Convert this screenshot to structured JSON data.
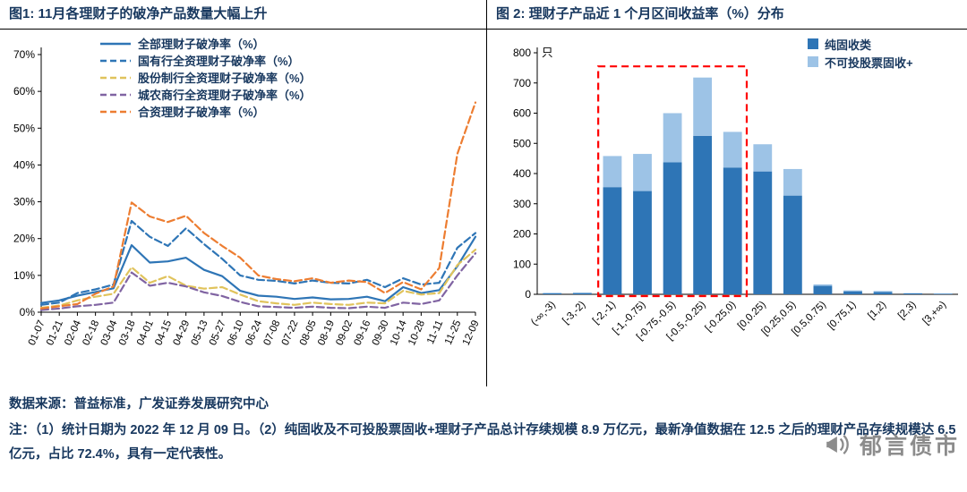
{
  "footer": {
    "source": "数据来源：普益标准，广发证券发展研究中心",
    "note": "注：（1）统计日期为 2022 年 12 月 09 日。（2）纯固收及不可投股票固收+理财子产品总计存续规模 8.9 万亿元，最新净值数据在 12.5 之后的理财产品存续规模达 6.5 亿元，占比 72.4%，具有一定代表性。"
  },
  "logo": {
    "text": "郁言债市"
  },
  "colors": {
    "title_text": "#17375E",
    "steel_blue": "#2E75B6",
    "light_blue": "#9DC3E6",
    "yellow": "#E0C35C",
    "purple": "#8064A2",
    "orange": "#ED7D31",
    "highlight_red": "#FF0000"
  },
  "chart_data": [
    {
      "type": "line",
      "title": "图1: 11月各理财子的破净产品数量大幅上升",
      "x": [
        "01-07",
        "01-21",
        "02-04",
        "02-18",
        "03-04",
        "03-18",
        "04-01",
        "04-15",
        "04-29",
        "05-13",
        "05-27",
        "06-10",
        "06-24",
        "07-08",
        "07-22",
        "08-05",
        "08-19",
        "09-02",
        "09-16",
        "09-30",
        "10-14",
        "10-28",
        "11-11",
        "11-25",
        "12-09"
      ],
      "ylim": [
        0,
        70
      ],
      "yticks": [
        0,
        10,
        20,
        30,
        40,
        50,
        60,
        70
      ],
      "ytick_format": "percent",
      "grid": false,
      "legend_position": "top-left-inside",
      "series": [
        {
          "name": "全部理财子破净率（%）",
          "color": "#2E75B6",
          "dash": false,
          "values": [
            2.5,
            3.2,
            4.5,
            5.5,
            6.5,
            18.2,
            13.5,
            13.8,
            14.8,
            11.5,
            9.8,
            5.8,
            4.5,
            4.2,
            3.6,
            4.0,
            3.5,
            3.6,
            4.2,
            3.0,
            6.8,
            5.2,
            6.0,
            12.5,
            20.5
          ]
        },
        {
          "name": "国有行全资理财子破净率（%）",
          "color": "#2E75B6",
          "dash": true,
          "values": [
            2.0,
            2.6,
            5.2,
            6.2,
            7.5,
            24.8,
            20.5,
            18.0,
            22.8,
            18.5,
            14.5,
            10.0,
            8.8,
            8.5,
            7.8,
            8.6,
            8.0,
            7.8,
            8.8,
            6.8,
            9.2,
            7.5,
            8.0,
            17.5,
            21.5
          ]
        },
        {
          "name": "股份制行全资理财子破净率（%）",
          "color": "#E0C35C",
          "dash": true,
          "values": [
            1.2,
            1.8,
            3.2,
            4.2,
            5.0,
            12.2,
            8.0,
            9.8,
            7.2,
            6.4,
            6.8,
            4.8,
            3.0,
            2.4,
            2.0,
            2.6,
            2.2,
            2.0,
            2.6,
            2.4,
            5.8,
            4.8,
            5.2,
            12.8,
            17.0
          ]
        },
        {
          "name": "城农商行全资理财子破净率（%）",
          "color": "#8064A2",
          "dash": true,
          "values": [
            0.6,
            1.0,
            1.6,
            2.0,
            2.6,
            10.8,
            7.2,
            8.0,
            7.0,
            5.4,
            4.4,
            2.8,
            1.6,
            1.4,
            1.2,
            1.5,
            1.2,
            1.1,
            1.5,
            1.2,
            2.6,
            2.2,
            3.2,
            10.0,
            16.0
          ]
        },
        {
          "name": "合资理财子破净率（%）",
          "color": "#ED7D31",
          "dash": true,
          "values": [
            1.0,
            1.6,
            2.2,
            5.0,
            7.0,
            29.8,
            26.0,
            24.5,
            26.2,
            21.5,
            18.0,
            14.8,
            10.0,
            9.0,
            8.4,
            9.2,
            8.0,
            8.6,
            8.2,
            5.2,
            8.2,
            6.2,
            12.0,
            43.0,
            57.0
          ]
        }
      ]
    },
    {
      "type": "bar",
      "stacked": true,
      "title": "图 2: 理财子产品近 1 个月区间收益率（%）分布",
      "unit": "只",
      "categories": [
        "(-∞,-3)",
        "[-3,-2)",
        "[-2,-1)",
        "[-1,-0.75)",
        "[-0.75,-0.5)",
        "[-0.5,-0.25)",
        "[-0.25,0)",
        "[0,0.25)",
        "[0.25,0.5)",
        "[0.5,0.75)",
        "[0.75,1)",
        "[1,2)",
        "[2,3)",
        "[3,+∞)"
      ],
      "ylim": [
        0,
        800
      ],
      "yticks": [
        0,
        100,
        200,
        300,
        400,
        500,
        600,
        700,
        800
      ],
      "grid": false,
      "legend_position": "top-right-inside",
      "series": [
        {
          "name": "纯固收类",
          "color": "#2E75B6",
          "values": [
            3,
            4,
            355,
            342,
            437,
            525,
            420,
            407,
            327,
            28,
            10,
            8,
            3,
            2
          ]
        },
        {
          "name": "不可投股票固收+",
          "color": "#9DC3E6",
          "values": [
            2,
            2,
            103,
            123,
            163,
            193,
            118,
            90,
            88,
            5,
            3,
            3,
            1,
            1
          ]
        }
      ],
      "highlight_box": {
        "from_category": "[-2,-1)",
        "to_category": "[-0.25,0)",
        "top_value": 755,
        "color": "#FF0000",
        "style": "dashed"
      }
    }
  ]
}
